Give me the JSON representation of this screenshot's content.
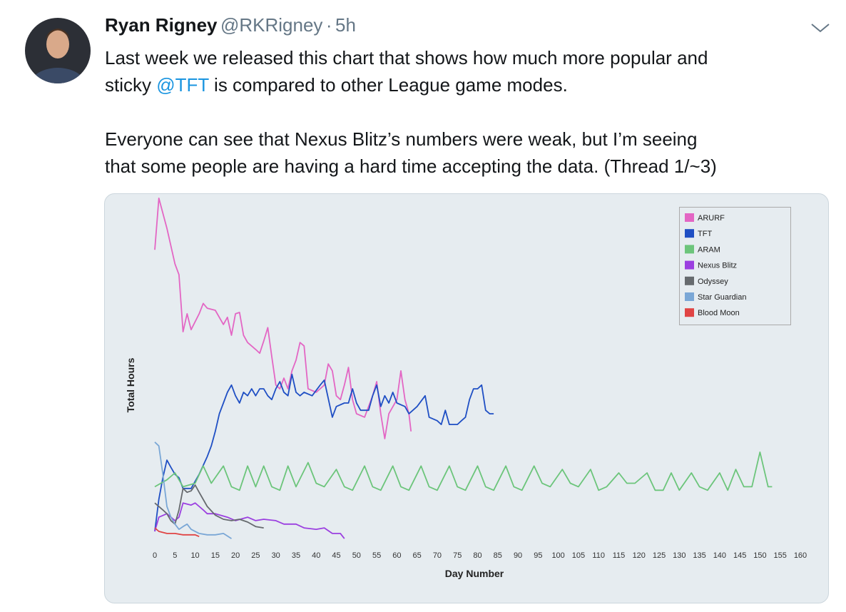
{
  "tweet": {
    "name": "Ryan Rigney",
    "handle": "@RKRigney",
    "separator": "·",
    "time": "5h",
    "line1": "Last week we released this chart that shows how much more popular and",
    "line2": [
      "sticky",
      "@TFT",
      "is compared to other League game modes."
    ],
    "line3": "Everyone can see that Nexus Blitz’s numbers were weak, but I’m seeing",
    "line4": "that some people are having a hard time accepting the data. (Thread 1/~3)"
  },
  "chart_data": {
    "type": "line",
    "x_label": "Day Number",
    "y_label": "Total Hours",
    "xlim": [
      0,
      160
    ],
    "xticks": [
      0,
      5,
      10,
      15,
      20,
      25,
      30,
      35,
      40,
      45,
      50,
      55,
      60,
      65,
      70,
      75,
      80,
      85,
      90,
      95,
      100,
      105,
      110,
      115,
      120,
      125,
      130,
      135,
      140,
      145,
      150,
      155,
      160
    ],
    "ylim": [
      0,
      100
    ],
    "legend": "upper right",
    "series": [
      {
        "name": "ARURF",
        "color": "#e366c4",
        "x": [
          0,
          1,
          3,
          5,
          6,
          7,
          8,
          9,
          11,
          12,
          13,
          15,
          17,
          18,
          19,
          20,
          21,
          22,
          23,
          25,
          26,
          27,
          28,
          29,
          30,
          31,
          32,
          33,
          34,
          35,
          36,
          37,
          38,
          40,
          42,
          43,
          44,
          45,
          46,
          47,
          48,
          49,
          50,
          52,
          54,
          55,
          56,
          57,
          58,
          60,
          61,
          62,
          63,
          63.5
        ],
        "values": [
          84.5,
          99.4,
          90.7,
          80.4,
          77.3,
          60.8,
          66,
          61.4,
          66,
          69,
          67.6,
          67,
          62.9,
          65,
          59.8,
          66,
          66.4,
          59.8,
          57.7,
          55.7,
          54.6,
          58.1,
          62,
          53.6,
          45.4,
          44.3,
          47.4,
          44.3,
          49.5,
          52.6,
          57.7,
          56.7,
          44.3,
          43.3,
          45.4,
          51.5,
          49.5,
          42.3,
          41.2,
          45.4,
          50.5,
          41.2,
          37.1,
          36.1,
          42.3,
          46.4,
          37.1,
          29.9,
          37.1,
          41.2,
          49.5,
          41.2,
          37.1,
          32
        ]
      },
      {
        "name": "TFT",
        "color": "#1f4fc4",
        "x": [
          0,
          1,
          2,
          3,
          4,
          5,
          6,
          7,
          9,
          11,
          13,
          14,
          15,
          16,
          17,
          18,
          19,
          20,
          21,
          22,
          23,
          24,
          25,
          26,
          27,
          28,
          29,
          30,
          31,
          32,
          33,
          34,
          35,
          36,
          37,
          39,
          41,
          42,
          44,
          45,
          47,
          48,
          49,
          50,
          51,
          53,
          54,
          55,
          56,
          57,
          58,
          59,
          60,
          62,
          63,
          65,
          67,
          68,
          70,
          71,
          72,
          73,
          75,
          76,
          77,
          78,
          79,
          80,
          81,
          82,
          83,
          84
        ],
        "values": [
          3.1,
          12.4,
          18.6,
          23.7,
          21.6,
          19.6,
          18.6,
          15.5,
          15.5,
          19.6,
          24.7,
          27.8,
          32,
          37.1,
          40.2,
          43.3,
          45.4,
          42.3,
          40.2,
          43.3,
          42.3,
          44.3,
          42.3,
          44.3,
          44.3,
          42.3,
          41.2,
          44.3,
          46.4,
          43.3,
          42.3,
          48.5,
          43.3,
          42.3,
          43.3,
          42.3,
          45.4,
          46.8,
          36.1,
          39.2,
          40.2,
          40.2,
          44.3,
          40.2,
          38.1,
          38.1,
          42.3,
          45.4,
          39.2,
          42.3,
          40.2,
          43.3,
          40.2,
          39.2,
          37.1,
          39.2,
          42.3,
          36.1,
          35.1,
          34,
          38.1,
          34,
          34,
          35.1,
          36.1,
          41.2,
          44.3,
          44.3,
          45.4,
          38.1,
          37.1,
          37.1
        ]
      },
      {
        "name": "ARAM",
        "color": "#6cc57b",
        "x": [
          0,
          3,
          5,
          7,
          10,
          12,
          14,
          17,
          19,
          21,
          23,
          25,
          27,
          29,
          31,
          33,
          35,
          38,
          40,
          42,
          45,
          47,
          49,
          52,
          54,
          56,
          59,
          61,
          63,
          66,
          68,
          70,
          73,
          75,
          77,
          80,
          82,
          84,
          87,
          89,
          91,
          94,
          96,
          98,
          101,
          103,
          105,
          108,
          110,
          112,
          115,
          117,
          119,
          122,
          124,
          126,
          128,
          130,
          133,
          135,
          137,
          140,
          142,
          144,
          146,
          148,
          150,
          152,
          153
        ],
        "values": [
          16,
          18,
          20,
          16,
          17,
          22,
          17,
          22,
          16,
          15,
          22,
          16,
          22,
          16,
          15,
          22,
          16,
          23,
          17,
          16,
          21,
          16,
          15,
          22,
          16,
          15,
          22,
          16,
          15,
          22,
          16,
          15,
          22,
          16,
          15,
          22,
          16,
          15,
          22,
          16,
          15,
          22,
          17,
          16,
          21,
          17,
          16,
          21,
          15,
          16,
          20,
          17,
          17,
          20,
          15,
          15,
          20,
          15,
          20,
          16,
          15,
          20,
          15,
          21,
          16,
          16,
          26,
          16,
          16
        ]
      },
      {
        "name": "Nexus Blitz",
        "color": "#9b3fe0",
        "x": [
          0,
          1,
          3,
          5,
          6,
          7,
          9,
          10,
          11,
          12,
          13,
          15,
          18,
          20,
          23,
          25,
          27,
          30,
          32,
          35,
          37,
          40,
          42,
          44,
          46,
          47
        ],
        "values": [
          3.1,
          7.2,
          8.2,
          6.2,
          7.2,
          11.3,
          10.7,
          11.3,
          10.3,
          9.3,
          8.2,
          8.2,
          7.2,
          6.2,
          7.2,
          6.2,
          6.6,
          6.2,
          5.2,
          5.2,
          4.1,
          3.7,
          4.1,
          2.5,
          2.5,
          1
        ]
      },
      {
        "name": "Odyssey",
        "color": "#666a6e",
        "x": [
          0,
          2,
          3,
          4,
          5,
          6,
          7,
          8,
          9,
          10,
          11,
          13,
          15,
          17,
          19,
          21,
          23,
          25,
          27
        ],
        "values": [
          11.3,
          9.3,
          8.2,
          6.2,
          5.2,
          9.3,
          15.5,
          14.4,
          14.8,
          16.5,
          14.4,
          10.3,
          7.8,
          6.6,
          6.2,
          6.6,
          5.8,
          4.5,
          4.1
        ]
      },
      {
        "name": "Star Guardian",
        "color": "#7aa7d6",
        "x": [
          0,
          1,
          2,
          3,
          4,
          5,
          6,
          7,
          8,
          9,
          11,
          13,
          15,
          17,
          19
        ],
        "values": [
          28.9,
          27.8,
          19.6,
          10.3,
          7.2,
          5.2,
          3.7,
          4.5,
          5.2,
          3.7,
          2.5,
          2.1,
          2.1,
          2.5,
          1
        ]
      },
      {
        "name": "Blood Moon",
        "color": "#e04444",
        "x": [
          0,
          1,
          3,
          5,
          7,
          10,
          11
        ],
        "values": [
          4.1,
          3.1,
          2.5,
          2.5,
          2.1,
          2.1,
          1.6
        ]
      }
    ]
  }
}
